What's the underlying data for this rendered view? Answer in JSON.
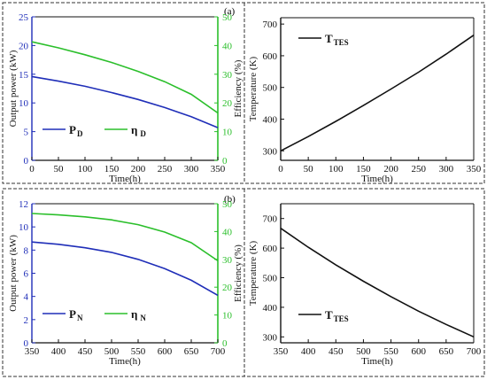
{
  "panels": [
    {
      "label": "(a)"
    },
    {
      "label": "(b)"
    }
  ],
  "colors": {
    "blue": "#1f2eb8",
    "green": "#2bbf2b",
    "black": "#111111",
    "frame": "#333333"
  },
  "chart_data": [
    {
      "type": "line",
      "panel": "(a)",
      "xlabel": "Time(h)",
      "ylabel": "Output power (kW)",
      "y2label": "Efficiency (%)",
      "xlim": [
        0,
        350
      ],
      "ylim": [
        0,
        25
      ],
      "y2lim": [
        0,
        50
      ],
      "xticks": [
        0,
        50,
        100,
        150,
        200,
        250,
        300,
        350
      ],
      "yticks": [
        0,
        5,
        10,
        15,
        20,
        25
      ],
      "y2ticks": [
        0,
        10,
        20,
        30,
        40,
        50
      ],
      "legend_position": "lower-left",
      "series": [
        {
          "name": "P",
          "subscript": "D",
          "axis": "left",
          "color": "#1f2eb8",
          "x": [
            0,
            50,
            100,
            150,
            200,
            250,
            300,
            350
          ],
          "values": [
            14.6,
            13.8,
            12.9,
            11.8,
            10.6,
            9.2,
            7.6,
            5.7
          ]
        },
        {
          "name": "η",
          "subscript": "D",
          "axis": "right",
          "color": "#2bbf2b",
          "x": [
            0,
            50,
            100,
            150,
            200,
            250,
            300,
            350
          ],
          "values": [
            41.3,
            39.2,
            36.8,
            34.1,
            31.0,
            27.4,
            23.0,
            16.5
          ]
        }
      ]
    },
    {
      "type": "line",
      "panel": "(a)",
      "xlabel": "Time(h)",
      "ylabel": "Temperature (K)",
      "xlim": [
        0,
        350
      ],
      "ylim": [
        270,
        720
      ],
      "xticks": [
        0,
        50,
        100,
        150,
        200,
        250,
        300,
        350
      ],
      "yticks": [
        300,
        400,
        500,
        600,
        700
      ],
      "legend_position": "top-left",
      "series": [
        {
          "name": "T",
          "subscript": "TES",
          "axis": "left",
          "color": "#111111",
          "x": [
            0,
            50,
            100,
            150,
            200,
            250,
            300,
            350
          ],
          "values": [
            300,
            345,
            393,
            443,
            495,
            548,
            605,
            665
          ]
        }
      ]
    },
    {
      "type": "line",
      "panel": "(b)",
      "xlabel": "Time(h)",
      "ylabel": "Output power (kW)",
      "y2label": "Efficiency (%)",
      "xlim": [
        350,
        700
      ],
      "ylim": [
        0,
        12
      ],
      "y2lim": [
        0,
        50
      ],
      "xticks": [
        350,
        400,
        450,
        500,
        550,
        600,
        650,
        700
      ],
      "yticks": [
        0,
        2,
        4,
        6,
        8,
        10,
        12
      ],
      "y2ticks": [
        0,
        10,
        20,
        30,
        40,
        50
      ],
      "legend_position": "lower-left",
      "series": [
        {
          "name": "P",
          "subscript": "N",
          "axis": "left",
          "color": "#1f2eb8",
          "x": [
            350,
            400,
            450,
            500,
            550,
            600,
            650,
            700
          ],
          "values": [
            8.7,
            8.5,
            8.2,
            7.8,
            7.2,
            6.4,
            5.4,
            4.1
          ]
        },
        {
          "name": "η",
          "subscript": "N",
          "axis": "right",
          "color": "#2bbf2b",
          "x": [
            350,
            400,
            450,
            500,
            550,
            600,
            650,
            700
          ],
          "values": [
            46.5,
            46.0,
            45.3,
            44.2,
            42.5,
            39.8,
            36.0,
            29.5
          ]
        }
      ]
    },
    {
      "type": "line",
      "panel": "(b)",
      "xlabel": "Time(h)",
      "ylabel": "Temperature (K)",
      "xlim": [
        350,
        700
      ],
      "ylim": [
        280,
        750
      ],
      "xticks": [
        350,
        400,
        450,
        500,
        550,
        600,
        650,
        700
      ],
      "yticks": [
        300,
        400,
        500,
        600,
        700
      ],
      "legend_position": "lower-left",
      "series": [
        {
          "name": "T",
          "subscript": "TES",
          "axis": "left",
          "color": "#111111",
          "x": [
            350,
            400,
            450,
            500,
            550,
            600,
            650,
            700
          ],
          "values": [
            667,
            603,
            543,
            488,
            436,
            387,
            342,
            300
          ]
        }
      ]
    }
  ]
}
